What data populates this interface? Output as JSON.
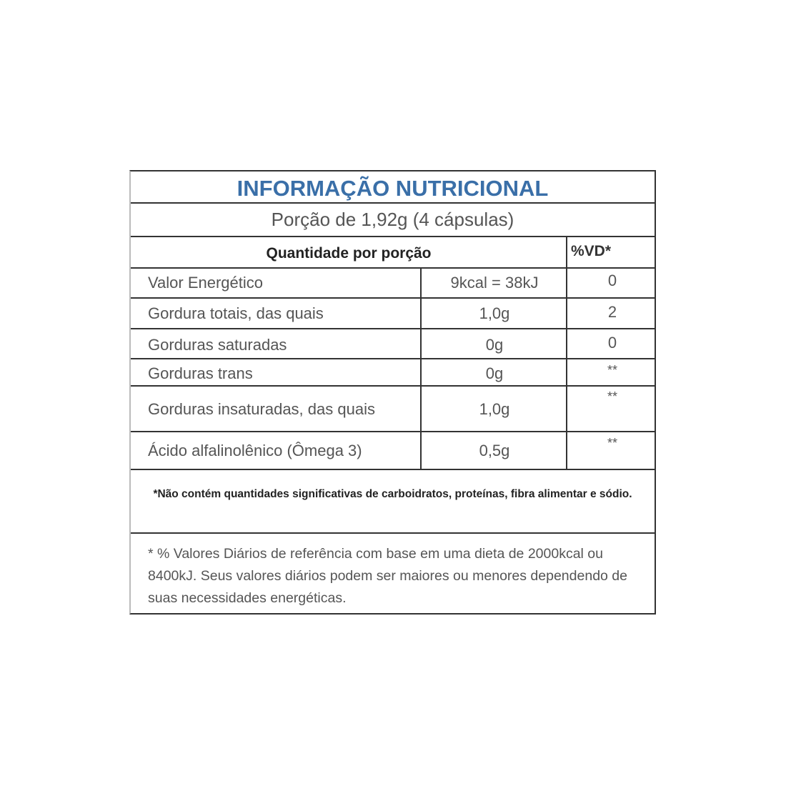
{
  "title": "INFORMAÇÃO NUTRICIONAL",
  "portion": "Porção de 1,92g (4 cápsulas)",
  "header": {
    "quantity": "Quantidade por porção",
    "vd": "%VD*"
  },
  "rows": [
    {
      "label": "Valor Energético",
      "amount": "9kcal = 38kJ",
      "vd": "0"
    },
    {
      "label": "Gordura totais, das quais",
      "amount": "1,0g",
      "vd": "2"
    },
    {
      "label": "Gorduras saturadas",
      "amount": "0g",
      "vd": "0"
    },
    {
      "label": "Gorduras trans",
      "amount": "0g",
      "vd": "**"
    },
    {
      "label": "Gorduras insaturadas, das quais",
      "amount": "1,0g",
      "vd": "**"
    },
    {
      "label": "Ácido alfalinolênico (Ômega 3)",
      "amount": "0,5g",
      "vd": "**"
    }
  ],
  "note": "*Não contém quantidades significativas de carboidratos, proteínas, fibra alimentar e sódio.",
  "footnote": "* % Valores Diários de referência com base em uma dieta de 2000kcal ou 8400kJ. Seus valores diários podem ser maiores ou menores dependendo de suas necessidades energéticas.",
  "colors": {
    "title": "#3a6fa8",
    "border": "#333333",
    "text": "#555555"
  }
}
